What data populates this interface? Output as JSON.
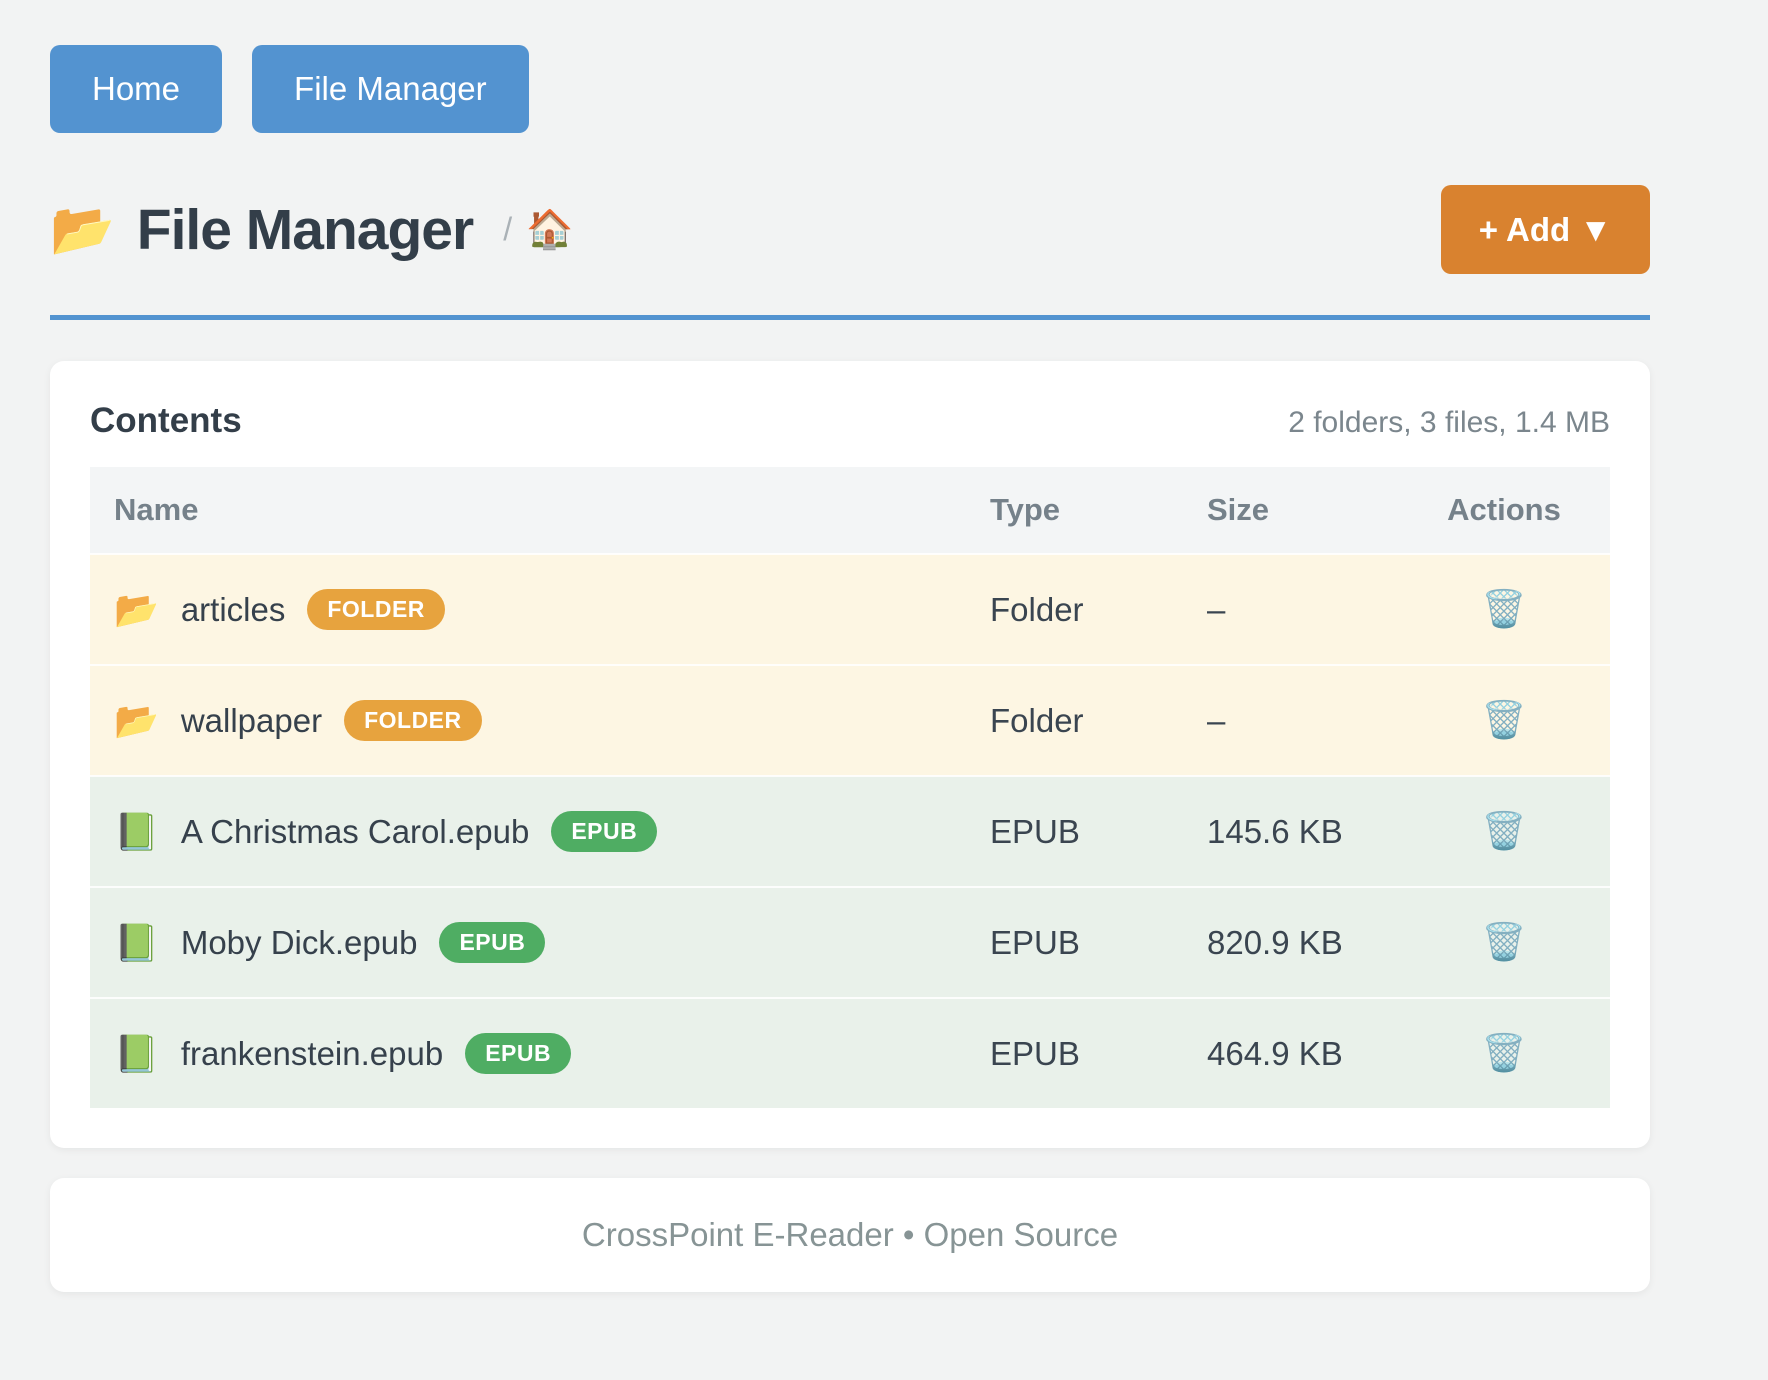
{
  "nav": {
    "home_label": "Home",
    "file_manager_label": "File Manager"
  },
  "header": {
    "title_icon": "📂",
    "title": "File Manager",
    "breadcrumb_separator": "/",
    "breadcrumb_home_icon": "🏠",
    "add_button_label": "+ Add ▼"
  },
  "content_card": {
    "title": "Contents",
    "summary": "2 folders, 3 files, 1.4 MB",
    "table": {
      "headers": {
        "name": "Name",
        "type": "Type",
        "size": "Size",
        "actions": "Actions"
      },
      "rows": [
        {
          "icon": "📂",
          "name": "articles",
          "badge": "FOLDER",
          "kind": "folder",
          "type": "Folder",
          "size": "–",
          "delete_icon": "🗑️"
        },
        {
          "icon": "📂",
          "name": "wallpaper",
          "badge": "FOLDER",
          "kind": "folder",
          "type": "Folder",
          "size": "–",
          "delete_icon": "🗑️"
        },
        {
          "icon": "📗",
          "name": "A Christmas Carol.epub",
          "badge": "EPUB",
          "kind": "file",
          "type": "EPUB",
          "size": "145.6 KB",
          "delete_icon": "🗑️"
        },
        {
          "icon": "📗",
          "name": "Moby Dick.epub",
          "badge": "EPUB",
          "kind": "file",
          "type": "EPUB",
          "size": "820.9 KB",
          "delete_icon": "🗑️"
        },
        {
          "icon": "📗",
          "name": "frankenstein.epub",
          "badge": "EPUB",
          "kind": "file",
          "type": "EPUB",
          "size": "464.9 KB",
          "delete_icon": "🗑️"
        }
      ]
    }
  },
  "footer": {
    "text": "CrossPoint E-Reader • Open Source"
  },
  "colors": {
    "accent_blue": "#5393d0",
    "accent_orange": "#d9822f",
    "badge_folder": "#e7a33e",
    "badge_epub": "#4fad63",
    "row_folder_bg": "#fdf6e3",
    "row_file_bg": "#e9f1ea",
    "page_bg": "#f2f3f3",
    "heading_text": "#333e49",
    "muted_text": "#7b868d"
  }
}
